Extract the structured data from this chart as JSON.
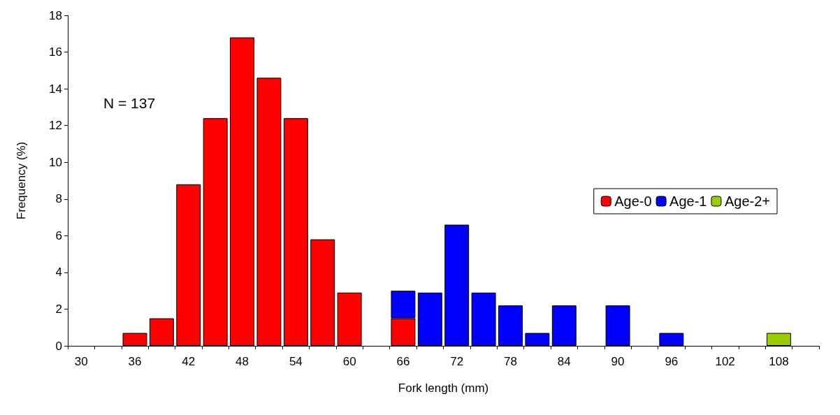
{
  "chart_data": {
    "type": "bar",
    "stacked": true,
    "xlabel": "Fork length (mm)",
    "ylabel": "Frequency (%)",
    "annotations": [
      "N = 137"
    ],
    "categories": [
      "30",
      null,
      "36",
      null,
      "42",
      null,
      "48",
      null,
      "54",
      null,
      "60",
      null,
      "66",
      null,
      "72",
      null,
      "78",
      null,
      "84",
      null,
      "90",
      null,
      "96",
      null,
      "102",
      null,
      "108",
      null
    ],
    "series": [
      {
        "name": "Age-0",
        "color": "#ff0000",
        "values": [
          null,
          null,
          0.7,
          1.5,
          8.8,
          12.4,
          16.8,
          14.6,
          12.4,
          5.8,
          2.9,
          null,
          1.5,
          null,
          null,
          null,
          null,
          null,
          null,
          null,
          null,
          null,
          null,
          null,
          null,
          null,
          null,
          null
        ]
      },
      {
        "name": "Age-1",
        "color": "#0000ff",
        "values": [
          null,
          null,
          null,
          null,
          null,
          null,
          null,
          null,
          null,
          null,
          null,
          null,
          1.5,
          2.9,
          6.6,
          2.9,
          2.2,
          0.7,
          2.2,
          null,
          2.2,
          null,
          0.7,
          null,
          null,
          null,
          null,
          null
        ]
      },
      {
        "name": "Age-2+",
        "color": "#99cc00",
        "values": [
          null,
          null,
          null,
          null,
          null,
          null,
          null,
          null,
          null,
          null,
          null,
          null,
          null,
          null,
          null,
          null,
          null,
          null,
          null,
          null,
          null,
          null,
          null,
          null,
          null,
          null,
          0.7,
          null
        ]
      }
    ],
    "ylim": [
      0,
      18
    ],
    "yticks": [
      0,
      2,
      4,
      6,
      8,
      10,
      12,
      14,
      16,
      18
    ],
    "grid": false,
    "legend": "right"
  }
}
